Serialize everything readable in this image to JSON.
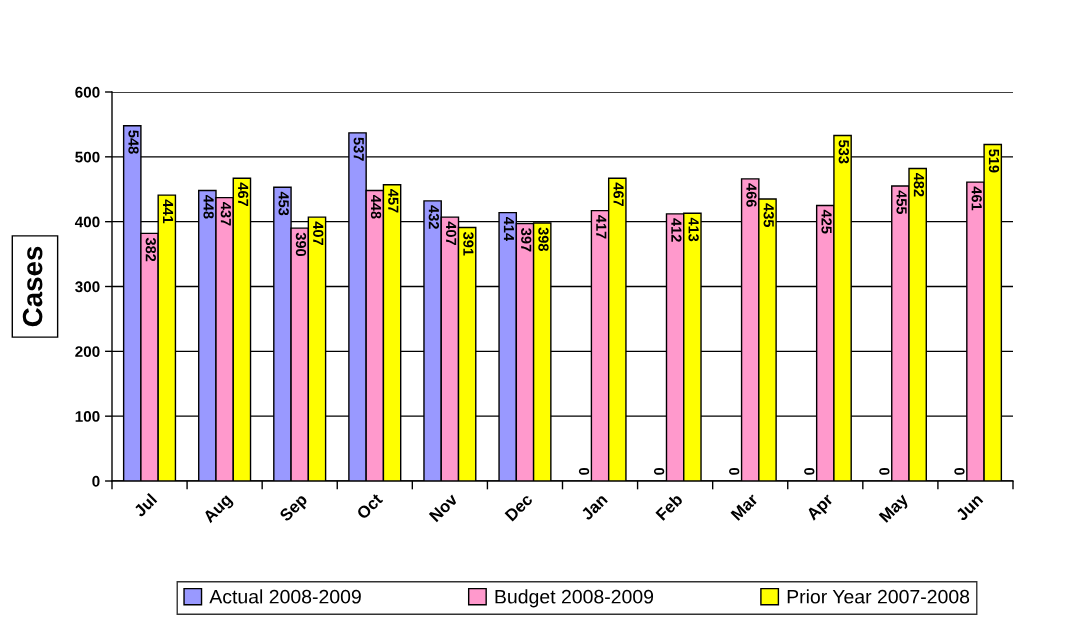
{
  "chart_data": {
    "type": "bar",
    "ylabel": "Cases",
    "categories": [
      "Jul",
      "Aug",
      "Sep",
      "Oct",
      "Nov",
      "Dec",
      "Jan",
      "Feb",
      "Mar",
      "Apr",
      "May",
      "Jun"
    ],
    "series": [
      {
        "name": "Actual 2008-2009",
        "color": "#9999ff",
        "values": [
          548,
          448,
          453,
          537,
          432,
          414,
          0,
          0,
          0,
          0,
          0,
          0
        ]
      },
      {
        "name": "Budget 2008-2009",
        "color": "#ff99cc",
        "values": [
          382,
          437,
          390,
          448,
          407,
          397,
          417,
          412,
          466,
          425,
          455,
          461
        ]
      },
      {
        "name": "Prior Year 2007-2008",
        "color": "#ffff00",
        "values": [
          441,
          467,
          407,
          457,
          391,
          398,
          467,
          413,
          435,
          533,
          482,
          519
        ]
      }
    ],
    "ylim": [
      0,
      600
    ],
    "yticks": [
      0,
      100,
      200,
      300,
      400,
      500,
      600
    ],
    "grid": "y",
    "legend": "bottom",
    "data_labels": true
  }
}
